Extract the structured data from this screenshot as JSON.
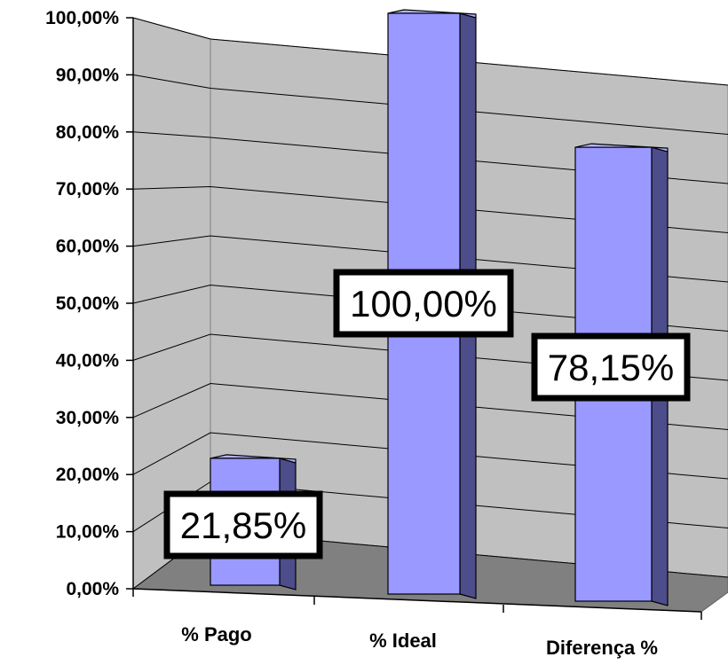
{
  "chart_data": {
    "type": "bar",
    "style": "3d-column",
    "categories": [
      "% Pago",
      "% Ideal",
      "Diferença %"
    ],
    "values": [
      21.85,
      100.0,
      78.15
    ],
    "data_labels": [
      "21,85%",
      "100,00%",
      "78,15%"
    ],
    "y_tick_labels": [
      "0,00%",
      "10,00%",
      "20,00%",
      "30,00%",
      "40,00%",
      "50,00%",
      "60,00%",
      "70,00%",
      "80,00%",
      "90,00%",
      "100,00%"
    ],
    "ylim": [
      0,
      100
    ],
    "grid": true,
    "legend": "none",
    "colors": {
      "bar_front": "#9999ff",
      "bar_side": "#4d4d8c",
      "bar_top": "#b3b3ff",
      "wall": "#c0c0c0",
      "floor": "#808080",
      "gridline": "#000000"
    }
  }
}
